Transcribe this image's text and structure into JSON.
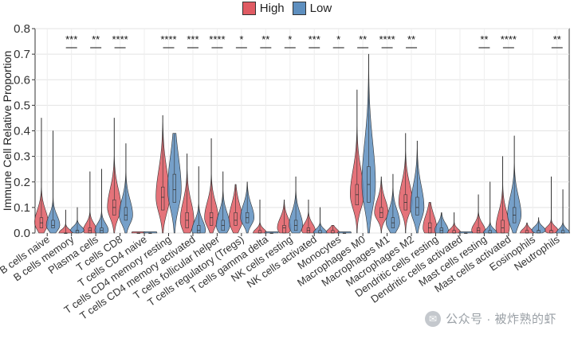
{
  "legend": {
    "title": "",
    "items": [
      {
        "label": "High",
        "color": "#e05b63"
      },
      {
        "label": "Low",
        "color": "#5e8fbf"
      }
    ]
  },
  "watermark": {
    "text": "公众号 · 被炸熟的虾",
    "icon": "wechat-icon"
  },
  "chart_data": {
    "type": "violin",
    "title": "",
    "xlabel": "",
    "ylabel": "Immune Cell Relative Proportion",
    "ylim": [
      0,
      0.8
    ],
    "yticks": [
      0,
      0.1,
      0.2,
      0.3,
      0.4,
      0.5,
      0.6,
      0.7,
      0.8
    ],
    "ytick_labels": [
      "0.0",
      "0.1",
      "0.2",
      "0.3",
      "0.4",
      "0.5",
      "0.6",
      "0.7",
      "0.8"
    ],
    "grid": true,
    "legend_position": "top-center",
    "series_colors": {
      "High": "#e05b63",
      "Low": "#5e8fbf"
    },
    "categories": [
      "B cells naive",
      "B cells memory",
      "Plasma cells",
      "T cells CD8",
      "T cells CD4 naive",
      "T cells CD4 memory resting",
      "T cells CD4 memory activated",
      "T cells follicular helper",
      "T cells regulatory (Tregs)",
      "T cells gamma delta",
      "NK cells resting",
      "NK cells activated",
      "Monocytes",
      "Macrophages M0",
      "Macrophages M1",
      "Macrophages M2",
      "Dendritic cells resting",
      "Dendritic cells activated",
      "Mast cells resting",
      "Mast cells activated",
      "Eosinophils",
      "Neutrophils"
    ],
    "significance": [
      "",
      "***",
      "**",
      "****",
      "",
      "****",
      "***",
      "****",
      "*",
      "**",
      "*",
      "***",
      "*",
      "**",
      "****",
      "**",
      "",
      "",
      "**",
      "****",
      "",
      "**"
    ],
    "series": [
      {
        "name": "High",
        "medians": [
          0.04,
          0.0,
          0.01,
          0.1,
          0.0,
          0.14,
          0.05,
          0.06,
          0.05,
          0.0,
          0.02,
          0.01,
          0.0,
          0.15,
          0.08,
          0.12,
          0.02,
          0.0,
          0.01,
          0.02,
          0.0,
          0.01
        ],
        "q1": [
          0.02,
          0.0,
          0.0,
          0.07,
          0.0,
          0.09,
          0.02,
          0.03,
          0.03,
          0.0,
          0.0,
          0.0,
          0.0,
          0.11,
          0.06,
          0.09,
          0.0,
          0.0,
          0.0,
          0.0,
          0.0,
          0.0
        ],
        "q3": [
          0.06,
          0.0,
          0.02,
          0.13,
          0.0,
          0.18,
          0.08,
          0.08,
          0.08,
          0.01,
          0.03,
          0.02,
          0.01,
          0.19,
          0.1,
          0.15,
          0.04,
          0.01,
          0.02,
          0.05,
          0.01,
          0.01
        ],
        "max": [
          0.45,
          0.09,
          0.24,
          0.45,
          0.0,
          0.46,
          0.31,
          0.37,
          0.19,
          0.13,
          0.13,
          0.13,
          0.03,
          0.56,
          0.22,
          0.39,
          0.12,
          0.08,
          0.15,
          0.3,
          0.04,
          0.22
        ]
      },
      {
        "name": "Low",
        "medians": [
          0.03,
          0.01,
          0.01,
          0.07,
          0.0,
          0.17,
          0.01,
          0.03,
          0.06,
          0.0,
          0.03,
          0.0,
          0.0,
          0.19,
          0.04,
          0.1,
          0.01,
          0.0,
          0.0,
          0.07,
          0.01,
          0.0
        ],
        "q1": [
          0.02,
          0.0,
          0.0,
          0.05,
          0.0,
          0.12,
          0.0,
          0.01,
          0.04,
          0.0,
          0.01,
          0.0,
          0.0,
          0.12,
          0.02,
          0.07,
          0.0,
          0.0,
          0.0,
          0.04,
          0.0,
          0.0
        ],
        "q3": [
          0.05,
          0.01,
          0.02,
          0.1,
          0.0,
          0.23,
          0.03,
          0.05,
          0.08,
          0.0,
          0.05,
          0.01,
          0.0,
          0.26,
          0.06,
          0.14,
          0.02,
          0.0,
          0.01,
          0.1,
          0.01,
          0.01
        ],
        "max": [
          0.4,
          0.1,
          0.25,
          0.35,
          0.0,
          0.39,
          0.26,
          0.24,
          0.2,
          0.0,
          0.22,
          0.1,
          0.0,
          0.7,
          0.23,
          0.36,
          0.08,
          0.0,
          0.2,
          0.38,
          0.06,
          0.17
        ]
      }
    ]
  }
}
